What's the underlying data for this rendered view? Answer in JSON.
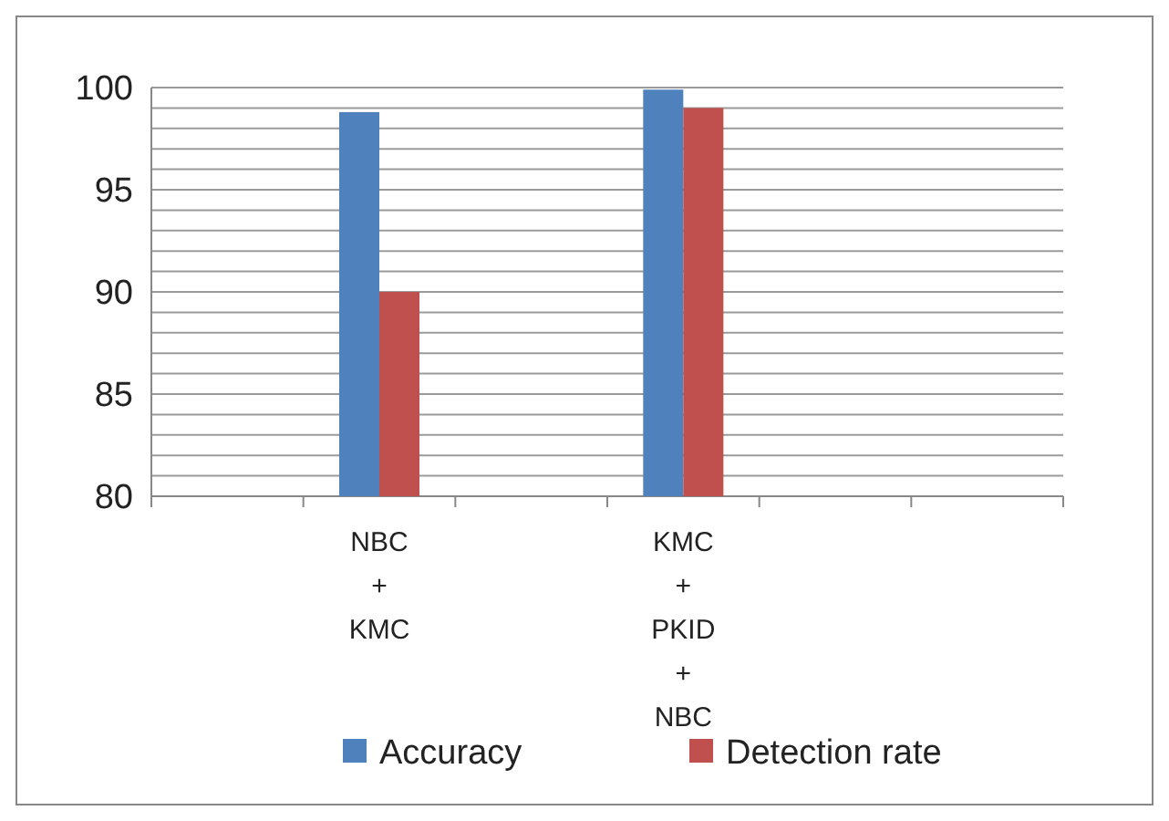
{
  "chart_data": {
    "type": "bar",
    "categories": [
      null,
      "NBC + KMC",
      null,
      "KMC + PKID + NBC",
      null,
      null
    ],
    "series": [
      {
        "name": "Accuracy",
        "color": "#4f81bd",
        "values": [
          null,
          98.8,
          null,
          99.9,
          null,
          null
        ]
      },
      {
        "name": "Detection rate",
        "color": "#c0504d",
        "values": [
          null,
          90,
          null,
          99,
          null,
          null
        ]
      }
    ],
    "ylim": [
      80,
      100
    ],
    "yticks": [
      80,
      {
        "value": 81,
        "label": null
      },
      {
        "value": 82,
        "label": null
      },
      {
        "value": 83,
        "label": null
      },
      {
        "value": 84,
        "label": null
      },
      85,
      {
        "value": 86,
        "label": null
      },
      {
        "value": 87,
        "label": null
      },
      {
        "value": 88,
        "label": null
      },
      {
        "value": 89,
        "label": null
      },
      90,
      {
        "value": 91,
        "label": null
      },
      {
        "value": 92,
        "label": null
      },
      {
        "value": 93,
        "label": null
      },
      {
        "value": 94,
        "label": null
      },
      95,
      {
        "value": 96,
        "label": null
      },
      {
        "value": 97,
        "label": null
      },
      {
        "value": 98,
        "label": null
      },
      {
        "value": 99,
        "label": null
      },
      100
    ],
    "grid": true,
    "legend": "bottom"
  }
}
